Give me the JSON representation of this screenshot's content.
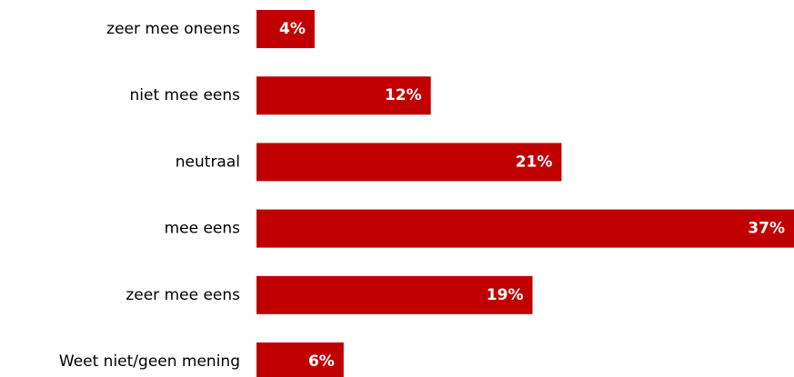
{
  "chart_data": {
    "type": "bar",
    "orientation": "horizontal",
    "categories": [
      "zeer mee oneens",
      "niet mee eens",
      "neutraal",
      "mee eens",
      "zeer mee eens",
      "Weet niet/geen mening"
    ],
    "values": [
      4,
      12,
      21,
      37,
      19,
      6
    ],
    "value_labels": [
      "4%",
      "12%",
      "21%",
      "37%",
      "19%",
      "6%"
    ],
    "unit": "%",
    "xlim": [
      0,
      37
    ],
    "grid": false,
    "legend": "none",
    "bar_color": "#c00000",
    "label_color": "#ffffff"
  }
}
